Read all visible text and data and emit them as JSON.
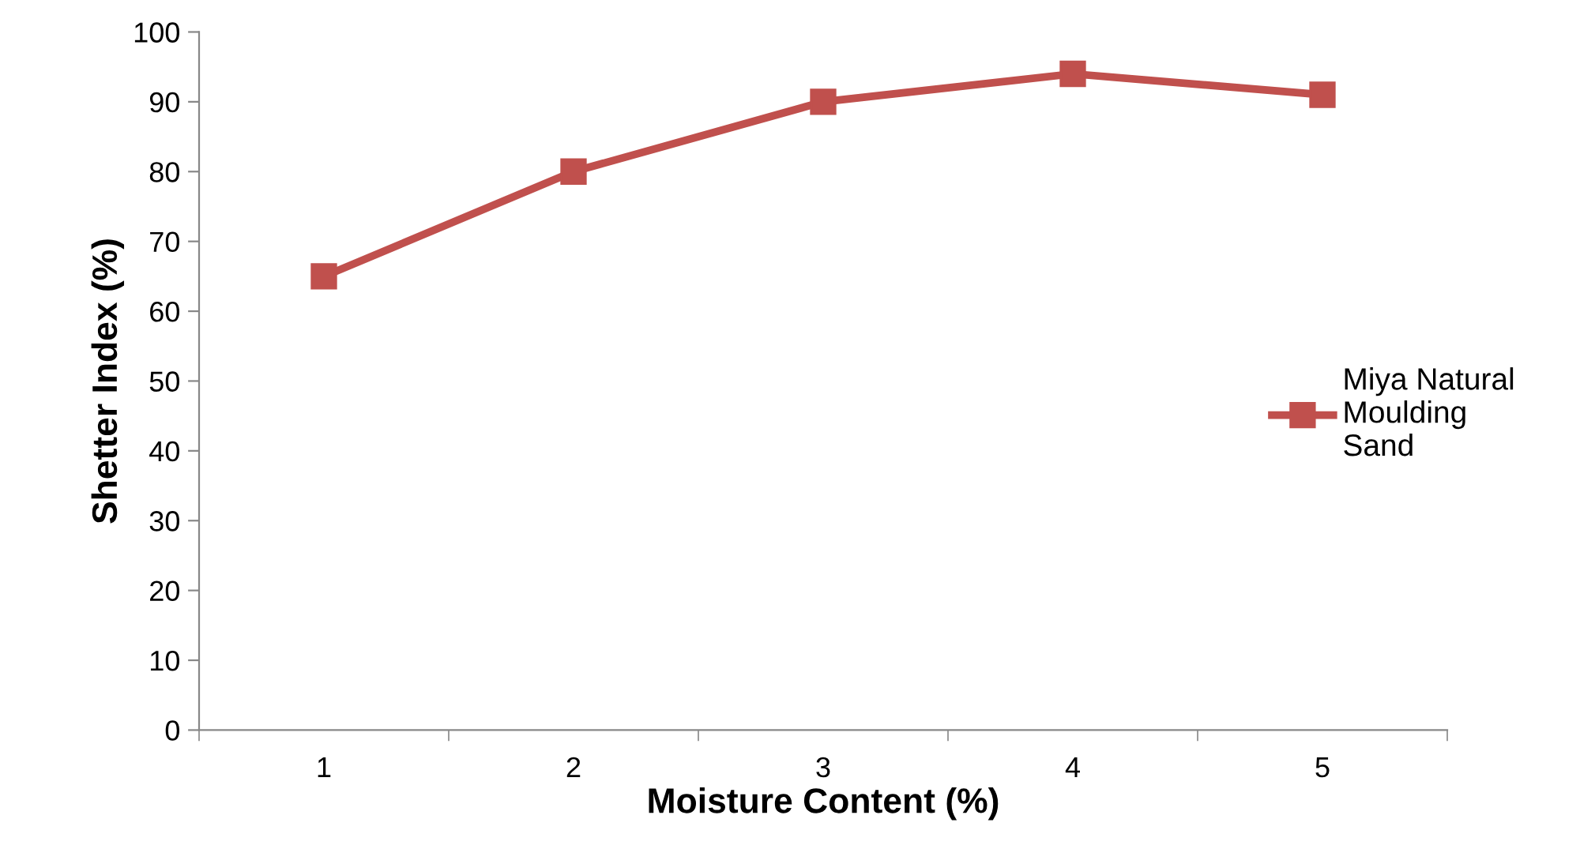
{
  "chart_data": {
    "type": "line",
    "xlabel": "Moisture Content (%)",
    "ylabel": "Shetter Index (%)",
    "categories": [
      "1",
      "2",
      "3",
      "4",
      "5"
    ],
    "series": [
      {
        "name": "Miya Natural\nMoulding\nSand",
        "color": "#c0504d",
        "values": [
          65,
          80,
          90,
          94,
          91
        ]
      }
    ],
    "ylim": [
      0,
      100
    ],
    "yticks": [
      0,
      10,
      20,
      30,
      40,
      50,
      60,
      70,
      80,
      90,
      100
    ],
    "grid": false,
    "legend": "right",
    "marker": "square",
    "line_style": "solid"
  }
}
